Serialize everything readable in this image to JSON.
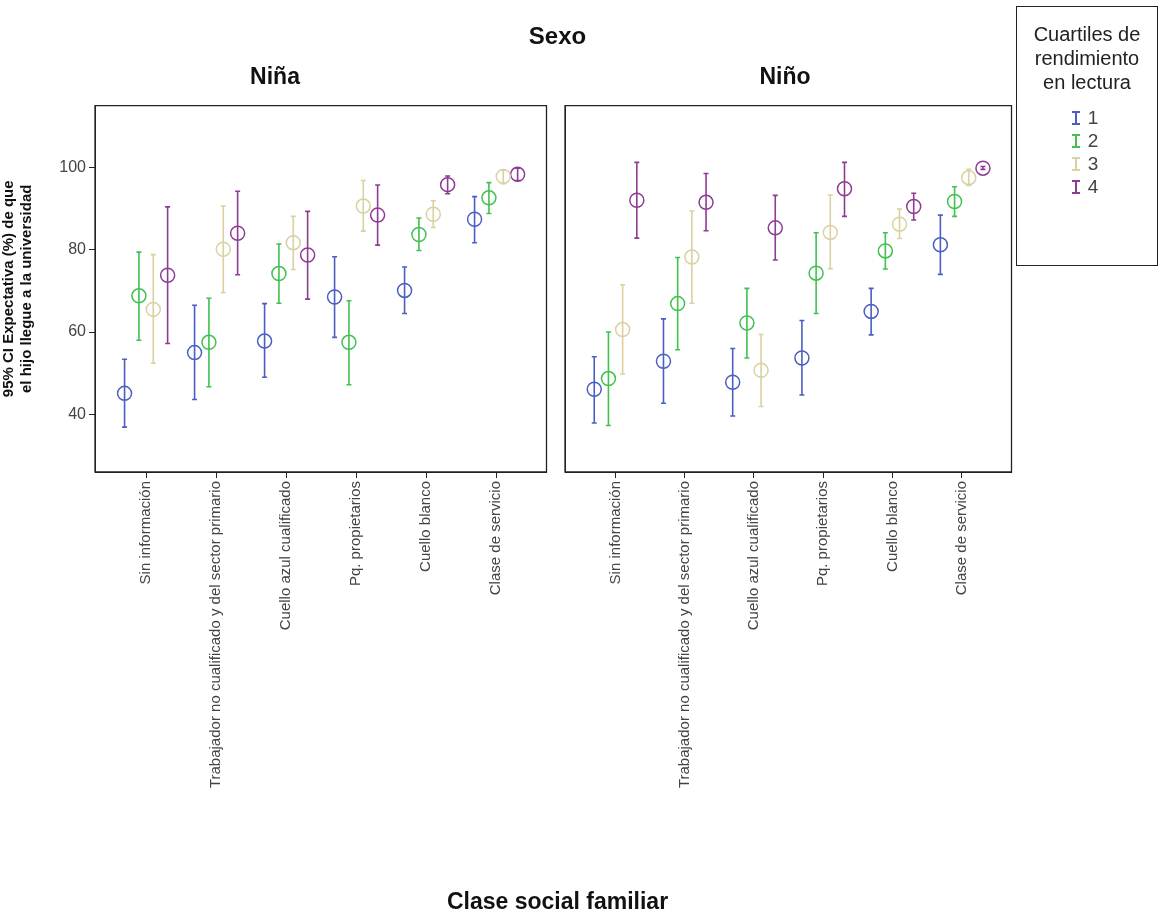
{
  "chart_data": [
    {
      "type": "scatter",
      "title": "Niña",
      "annotations": [
        "Sexo"
      ],
      "xlabel": "Clase social familiar",
      "ylabel": "95% CI Expectativa (%) de que el hijo llegue a la universidad",
      "categories": [
        "Sin información",
        "Trabajador no cualificado y del sector primario",
        "Cuello azul cualificado",
        "Pq. propietarios",
        "Cuello blanco",
        "Clase de servicio"
      ],
      "ylim": [
        26,
        115
      ],
      "yticks": [
        40,
        60,
        80,
        100
      ],
      "grid": false,
      "legend": false,
      "marker": "circle",
      "series": [
        {
          "color": "#4a5fc1",
          "values": [
            45.1,
            55.0,
            57.8,
            68.5,
            70.1,
            87.4
          ],
          "errors": [
            [
              36.9,
              53.4
            ],
            [
              43.6,
              66.5
            ],
            [
              49.0,
              66.9
            ],
            [
              58.7,
              78.3
            ],
            [
              64.5,
              75.8
            ],
            [
              81.7,
              92.9
            ]
          ]
        },
        {
          "color": "#3fc24f",
          "values": [
            68.8,
            57.5,
            74.2,
            57.5,
            83.7,
            92.6
          ],
          "errors": [
            [
              58.0,
              79.4
            ],
            [
              46.7,
              68.2
            ],
            [
              67.0,
              81.4
            ],
            [
              47.2,
              67.6
            ],
            [
              79.8,
              87.7
            ],
            [
              88.8,
              96.3
            ]
          ]
        },
        {
          "color": "#d9d2a0",
          "values": [
            65.5,
            80.1,
            81.7,
            90.6,
            88.6,
            97.8
          ],
          "errors": [
            [
              52.4,
              78.8
            ],
            [
              69.6,
              90.6
            ],
            [
              75.2,
              88.1
            ],
            [
              84.5,
              96.8
            ],
            [
              85.4,
              91.9
            ],
            [
              96.0,
              99.3
            ]
          ]
        },
        {
          "color": "#8e3b94",
          "values": [
            73.8,
            84.0,
            78.7,
            88.4,
            95.8,
            98.3
          ],
          "errors": [
            [
              57.2,
              90.4
            ],
            [
              73.9,
              94.2
            ],
            [
              68.0,
              89.3
            ],
            [
              81.1,
              95.7
            ],
            [
              93.6,
              97.9
            ],
            [
              96.8,
              99.8
            ]
          ]
        }
      ]
    },
    {
      "type": "scatter",
      "title": "Niño",
      "legend_title": "Cuartiles de rendimiento en lectura",
      "legend": "right",
      "tick_labels": "x",
      "categories": [
        "Sin información",
        "Trabajador no cualificado y del sector primario",
        "Cuello azul cualificado",
        "Pq. propietarios",
        "Cuello blanco",
        "Clase de servicio"
      ],
      "ylim": [
        26,
        115
      ],
      "yticks": [
        40,
        60,
        80,
        100
      ],
      "grid": false,
      "marker": "circle",
      "series": [
        {
          "name": "1",
          "color": "#4a5fc1",
          "values": [
            46.1,
            52.9,
            47.8,
            53.7,
            65.0,
            81.2
          ],
          "errors": [
            [
              37.9,
              54.0
            ],
            [
              42.7,
              63.2
            ],
            [
              39.6,
              56.0
            ],
            [
              44.7,
              62.8
            ],
            [
              59.3,
              70.6
            ],
            [
              74.0,
              88.4
            ]
          ]
        },
        {
          "name": "2",
          "color": "#3fc24f",
          "values": [
            48.7,
            66.9,
            62.2,
            74.3,
            79.7,
            91.7
          ],
          "errors": [
            [
              37.3,
              60.0
            ],
            [
              55.7,
              78.1
            ],
            [
              53.7,
              70.6
            ],
            [
              64.5,
              84.1
            ],
            [
              75.3,
              84.1
            ],
            [
              88.1,
              95.3
            ]
          ]
        },
        {
          "name": "3",
          "color": "#d9d2a0",
          "values": [
            60.6,
            78.2,
            50.7,
            84.2,
            86.2,
            97.5
          ],
          "errors": [
            [
              49.8,
              71.5
            ],
            [
              67.0,
              89.4
            ],
            [
              41.9,
              59.4
            ],
            [
              75.4,
              93.3
            ],
            [
              82.7,
              89.9
            ],
            [
              95.6,
              99.5
            ]
          ]
        },
        {
          "name": "4",
          "color": "#8e3b94",
          "values": [
            92.0,
            91.5,
            85.3,
            94.8,
            90.5,
            99.8
          ],
          "errors": [
            [
              82.8,
              101.2
            ],
            [
              84.6,
              98.5
            ],
            [
              77.5,
              93.2
            ],
            [
              88.1,
              101.2
            ],
            [
              87.2,
              93.7
            ],
            [
              99.5,
              100.2
            ]
          ]
        }
      ]
    }
  ]
}
